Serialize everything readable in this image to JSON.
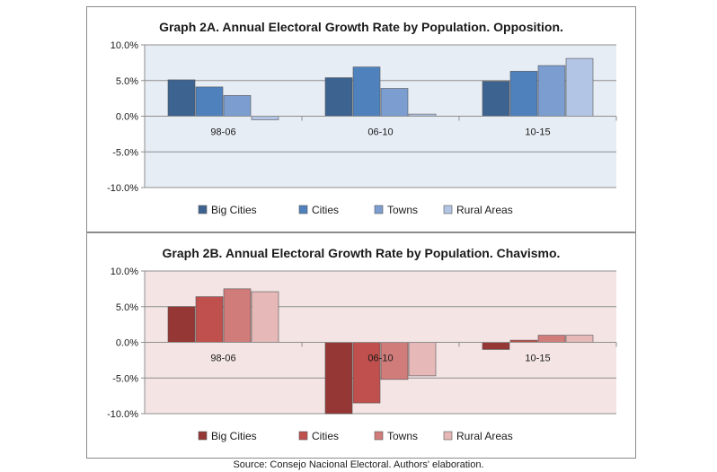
{
  "source": "Source: Consejo Nacional Electoral. Authors' elaboration.",
  "chart_data": [
    {
      "type": "bar",
      "title": "Graph 2A. Annual Electoral Growth Rate by Population. Opposition.",
      "categories": [
        "98-06",
        "06-10",
        "10-15"
      ],
      "ylim": [
        -10,
        10
      ],
      "yticks": [
        "10.0%",
        "5.0%",
        "0.0%",
        "-5.0%",
        "-10.0%"
      ],
      "grid": true,
      "legend": "bottom",
      "background": "#e7edf5",
      "series": [
        {
          "name": "Big Cities",
          "color": "#3d6390",
          "values": [
            5.1,
            5.4,
            4.9
          ]
        },
        {
          "name": "Cities",
          "color": "#4f81bd",
          "values": [
            4.1,
            6.9,
            6.3
          ]
        },
        {
          "name": "Towns",
          "color": "#7b9dd0",
          "values": [
            2.9,
            3.9,
            7.1
          ]
        },
        {
          "name": "Rural Areas",
          "color": "#b3c5e4",
          "values": [
            -0.5,
            0.3,
            8.1
          ]
        }
      ]
    },
    {
      "type": "bar",
      "title": "Graph 2B. Annual Electoral Growth Rate by Population. Chavismo.",
      "categories": [
        "98-06",
        "06-10",
        "10-15"
      ],
      "ylim": [
        -10,
        10
      ],
      "yticks": [
        "10.0%",
        "5.0%",
        "0.0%",
        "-5.0%",
        "-10.0%"
      ],
      "grid": true,
      "legend": "bottom",
      "background": "#f4e4e4",
      "series": [
        {
          "name": "Big Cities",
          "color": "#953735",
          "values": [
            5.0,
            -10.0,
            -1.0
          ]
        },
        {
          "name": "Cities",
          "color": "#c0504d",
          "values": [
            6.4,
            -8.5,
            0.3
          ]
        },
        {
          "name": "Towns",
          "color": "#d07c7a",
          "values": [
            7.5,
            -5.2,
            1.0
          ]
        },
        {
          "name": "Rural Areas",
          "color": "#e6b9b8",
          "values": [
            7.1,
            -4.7,
            1.0
          ]
        }
      ]
    }
  ]
}
